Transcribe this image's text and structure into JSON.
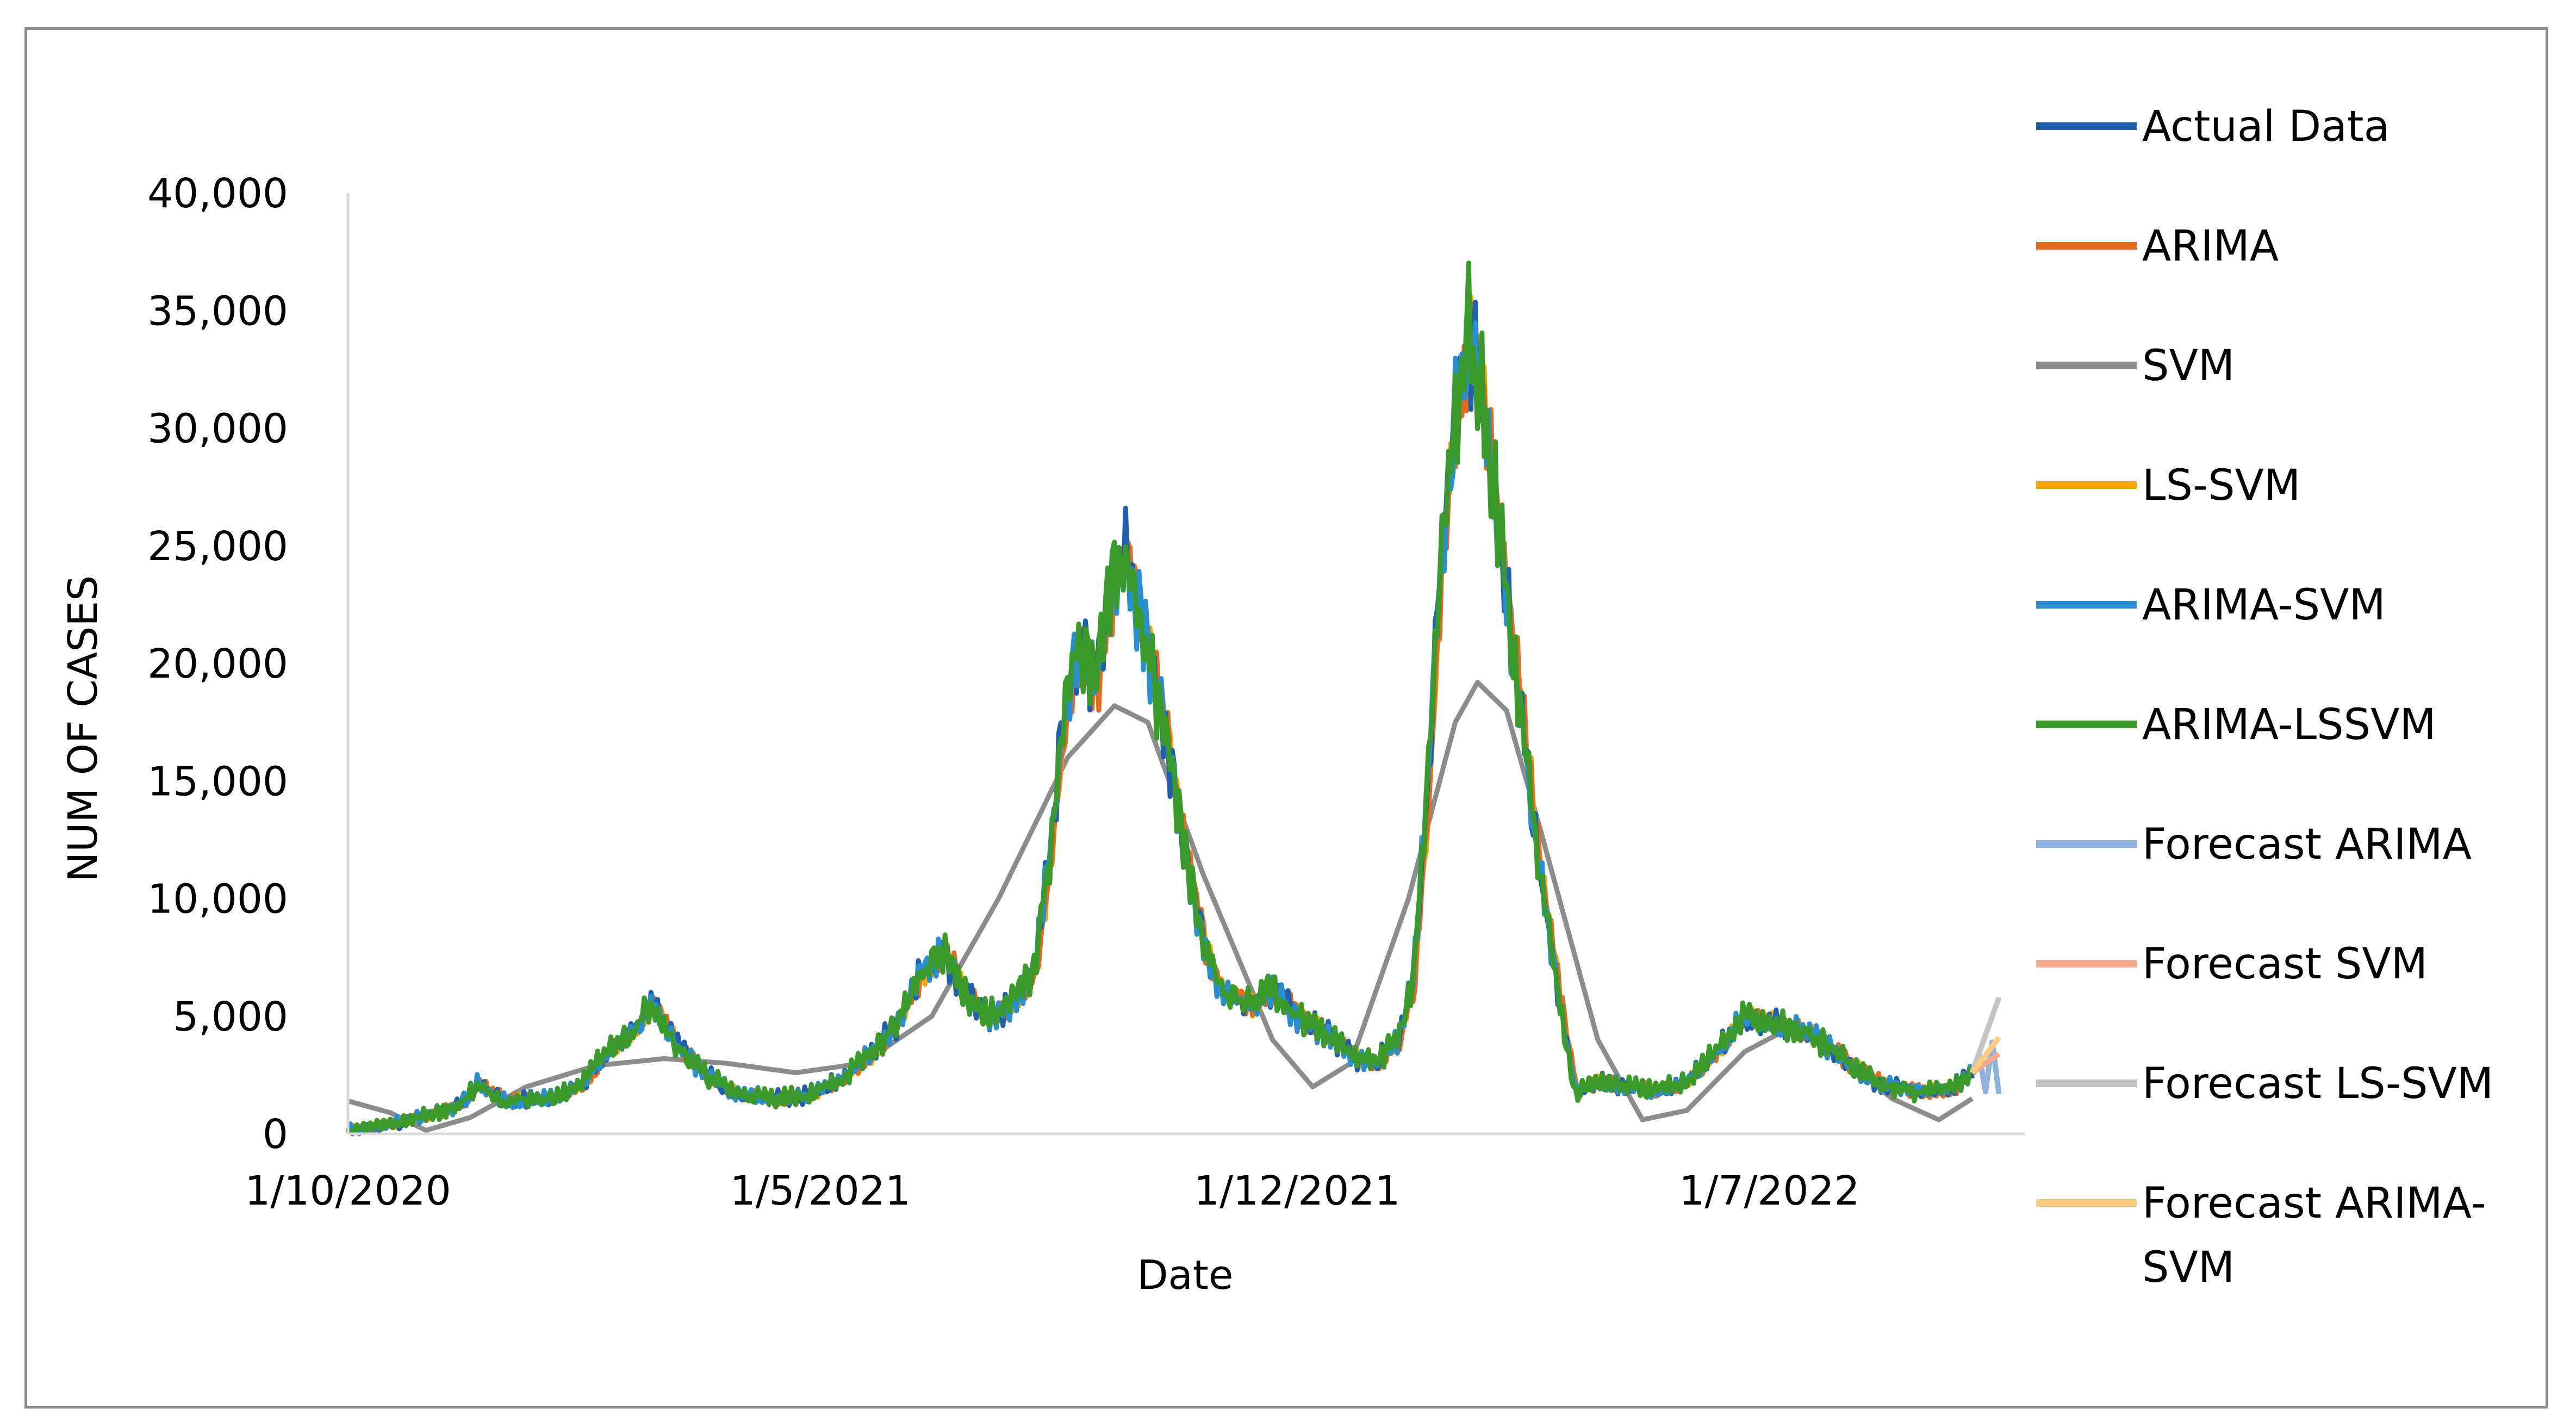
{
  "chart_data": {
    "type": "line",
    "xlabel": "Date",
    "ylabel": "NUM OF CASES",
    "ylim": [
      0,
      40000
    ],
    "xlim": [
      "2020-10-01",
      "2022-10-01"
    ],
    "y_ticks": [
      "0",
      "5,000",
      "10,000",
      "15,000",
      "20,000",
      "25,000",
      "30,000",
      "35,000",
      "40,000"
    ],
    "y_tick_values": [
      0,
      5000,
      10000,
      15000,
      20000,
      25000,
      30000,
      35000,
      40000
    ],
    "x_ticks": [
      "1/10/2020",
      "1/5/2021",
      "1/12/2021",
      "1/7/2022"
    ],
    "x_tick_dates": [
      "2020-10-01",
      "2021-05-01",
      "2021-12-01",
      "2022-07-01"
    ],
    "legend_position": "right",
    "grid": false,
    "series": [
      {
        "name": "Actual Data",
        "color": "#1f5fad",
        "role": "fit"
      },
      {
        "name": "ARIMA",
        "color": "#e56b1f",
        "role": "fit"
      },
      {
        "name": "SVM",
        "color": "#8c8c8c",
        "role": "svm"
      },
      {
        "name": "LS-SVM",
        "color": "#f5a800",
        "role": "fit"
      },
      {
        "name": "ARIMA-SVM",
        "color": "#2a8fd0",
        "role": "fit"
      },
      {
        "name": "ARIMA-LSSVM",
        "color": "#3a9a2a",
        "role": "fit"
      },
      {
        "name": "Forecast ARIMA",
        "color": "#8fb1e0",
        "role": "forecast"
      },
      {
        "name": "Forecast SVM",
        "color": "#f4a98a",
        "role": "forecast"
      },
      {
        "name": "Forecast LS-SVM",
        "color": "#c4c4c4",
        "role": "forecast"
      },
      {
        "name": "Forecast ARIMA-SVM",
        "color": "#fbcd7e",
        "role": "forecast"
      }
    ],
    "actual_key_points": [
      [
        "2020-10-01",
        150
      ],
      [
        "2020-10-20",
        400
      ],
      [
        "2020-11-10",
        900
      ],
      [
        "2020-11-20",
        1200
      ],
      [
        "2020-11-28",
        2100
      ],
      [
        "2020-12-10",
        1400
      ],
      [
        "2021-01-01",
        1500
      ],
      [
        "2021-01-15",
        2200
      ],
      [
        "2021-01-25",
        3500
      ],
      [
        "2021-02-05",
        4300
      ],
      [
        "2021-02-15",
        5600
      ],
      [
        "2021-02-25",
        3800
      ],
      [
        "2021-03-10",
        2500
      ],
      [
        "2021-03-25",
        1700
      ],
      [
        "2021-04-10",
        1500
      ],
      [
        "2021-04-25",
        1600
      ],
      [
        "2021-05-10",
        2300
      ],
      [
        "2021-05-25",
        3500
      ],
      [
        "2021-06-05",
        4800
      ],
      [
        "2021-06-15",
        6800
      ],
      [
        "2021-06-25",
        7800
      ],
      [
        "2021-07-05",
        6000
      ],
      [
        "2021-07-15",
        5000
      ],
      [
        "2021-07-25",
        5500
      ],
      [
        "2021-08-05",
        7000
      ],
      [
        "2021-08-12",
        12000
      ],
      [
        "2021-08-18",
        17500
      ],
      [
        "2021-08-25",
        21000
      ],
      [
        "2021-09-01",
        19000
      ],
      [
        "2021-09-08",
        23000
      ],
      [
        "2021-09-15",
        24800
      ],
      [
        "2021-09-22",
        22000
      ],
      [
        "2021-10-01",
        18000
      ],
      [
        "2021-10-10",
        13000
      ],
      [
        "2021-10-20",
        8000
      ],
      [
        "2021-10-28",
        6000
      ],
      [
        "2021-11-10",
        5500
      ],
      [
        "2021-11-20",
        6200
      ],
      [
        "2021-12-01",
        5000
      ],
      [
        "2021-12-15",
        4200
      ],
      [
        "2021-12-28",
        3200
      ],
      [
        "2022-01-05",
        3000
      ],
      [
        "2022-01-15",
        4000
      ],
      [
        "2022-01-22",
        6500
      ],
      [
        "2022-01-28",
        14000
      ],
      [
        "2022-02-03",
        24000
      ],
      [
        "2022-02-10",
        30500
      ],
      [
        "2022-02-16",
        33800
      ],
      [
        "2022-02-22",
        31000
      ],
      [
        "2022-03-01",
        26000
      ],
      [
        "2022-03-10",
        19000
      ],
      [
        "2022-03-20",
        11000
      ],
      [
        "2022-03-30",
        5000
      ],
      [
        "2022-04-05",
        1700
      ],
      [
        "2022-04-15",
        2200
      ],
      [
        "2022-04-28",
        2000
      ],
      [
        "2022-05-10",
        1800
      ],
      [
        "2022-05-25",
        2200
      ],
      [
        "2022-06-10",
        3800
      ],
      [
        "2022-06-20",
        5000
      ],
      [
        "2022-07-05",
        4600
      ],
      [
        "2022-07-20",
        4200
      ],
      [
        "2022-08-05",
        3000
      ],
      [
        "2022-08-20",
        2100
      ],
      [
        "2022-09-05",
        1800
      ],
      [
        "2022-09-20",
        1900
      ],
      [
        "2022-09-30",
        2600
      ]
    ],
    "svm_key_points": [
      [
        "2020-10-01",
        1400
      ],
      [
        "2020-10-20",
        900
      ],
      [
        "2020-11-05",
        150
      ],
      [
        "2020-11-25",
        700
      ],
      [
        "2020-12-20",
        2000
      ],
      [
        "2021-01-20",
        2900
      ],
      [
        "2021-02-20",
        3200
      ],
      [
        "2021-03-20",
        3000
      ],
      [
        "2021-04-20",
        2600
      ],
      [
        "2021-05-20",
        3000
      ],
      [
        "2021-06-20",
        5000
      ],
      [
        "2021-07-20",
        10000
      ],
      [
        "2021-08-20",
        16000
      ],
      [
        "2021-09-10",
        18200
      ],
      [
        "2021-09-25",
        17500
      ],
      [
        "2021-10-20",
        11000
      ],
      [
        "2021-11-20",
        4000
      ],
      [
        "2021-12-08",
        2000
      ],
      [
        "2021-12-25",
        3000
      ],
      [
        "2022-01-20",
        10000
      ],
      [
        "2022-02-10",
        17500
      ],
      [
        "2022-02-20",
        19200
      ],
      [
        "2022-03-05",
        18000
      ],
      [
        "2022-03-20",
        13000
      ],
      [
        "2022-04-15",
        4000
      ],
      [
        "2022-05-05",
        600
      ],
      [
        "2022-05-25",
        1000
      ],
      [
        "2022-06-20",
        3500
      ],
      [
        "2022-07-10",
        4500
      ],
      [
        "2022-07-30",
        3500
      ],
      [
        "2022-08-25",
        1500
      ],
      [
        "2022-09-15",
        600
      ],
      [
        "2022-09-30",
        1500
      ]
    ],
    "forecast_key_points": {
      "Forecast ARIMA": [
        [
          "2022-09-30",
          2600
        ],
        [
          "2022-10-03",
          3400
        ],
        [
          "2022-10-06",
          1800
        ],
        [
          "2022-10-09",
          3900
        ],
        [
          "2022-10-12",
          1700
        ]
      ],
      "Forecast SVM": [
        [
          "2022-09-30",
          2600
        ],
        [
          "2022-10-12",
          3400
        ]
      ],
      "Forecast LS-SVM": [
        [
          "2022-09-30",
          2600
        ],
        [
          "2022-10-12",
          5800
        ]
      ],
      "Forecast ARIMA-SVM": [
        [
          "2022-09-30",
          2600
        ],
        [
          "2022-10-12",
          4100
        ]
      ]
    },
    "forecast_end": "2022-10-12"
  }
}
